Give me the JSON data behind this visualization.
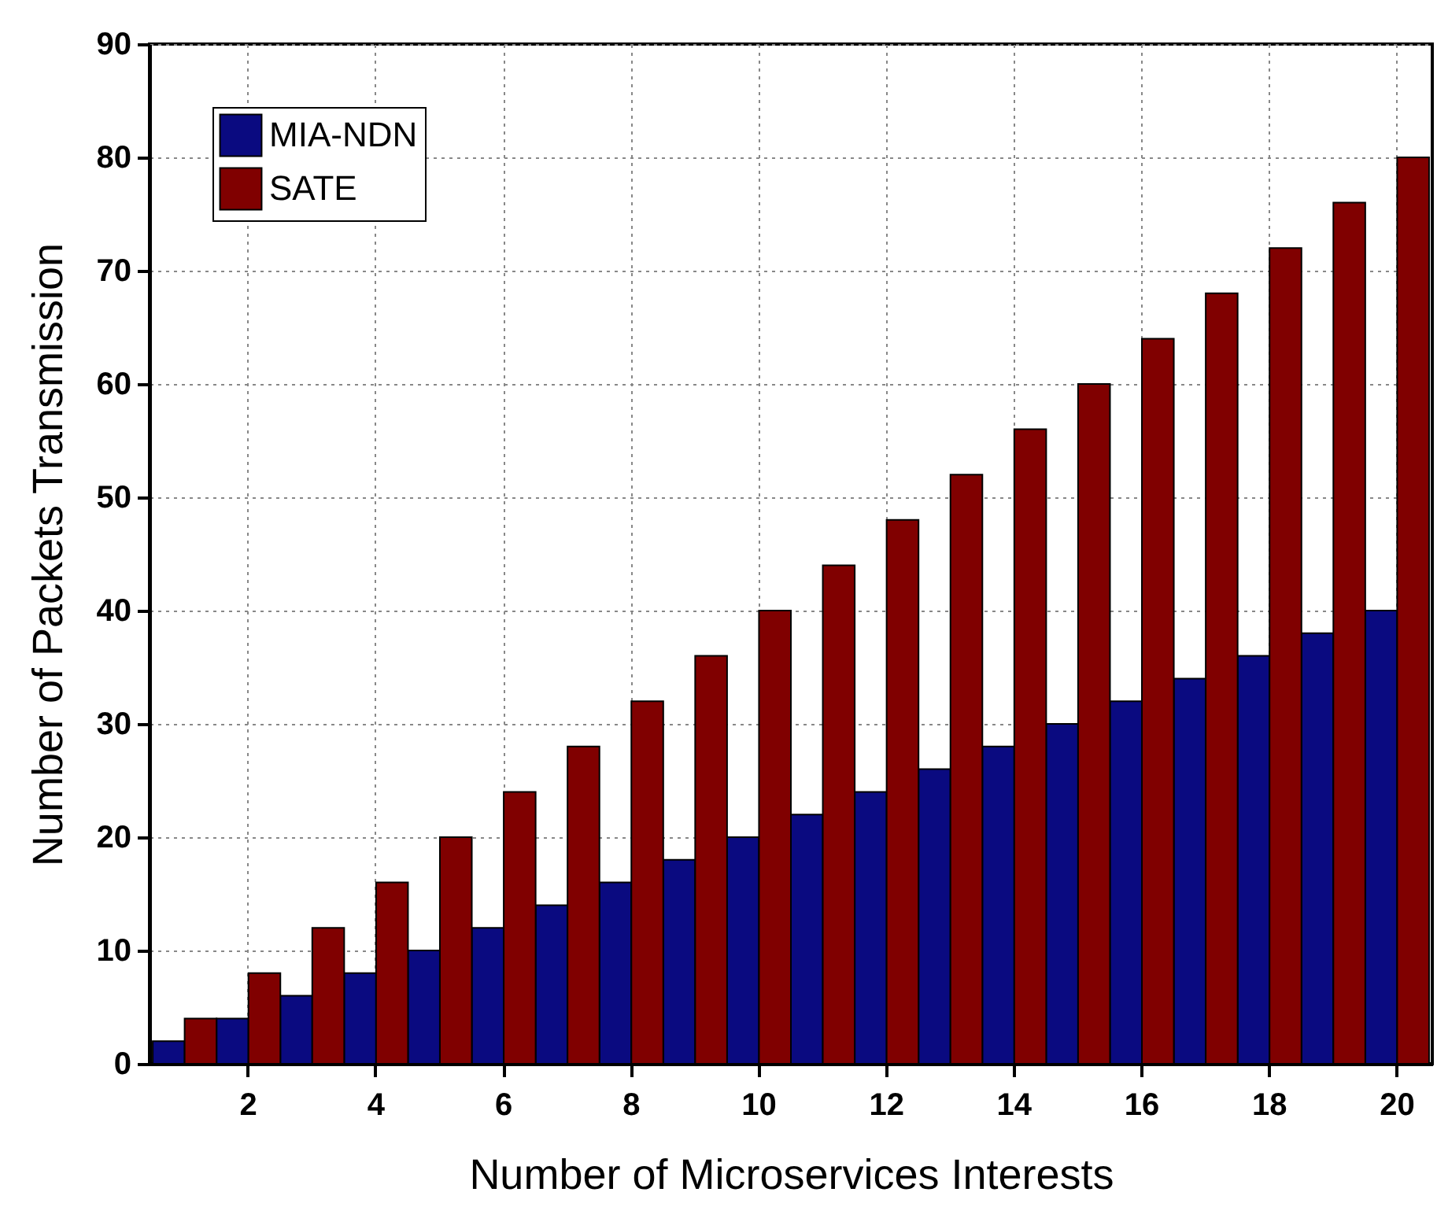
{
  "chart_data": {
    "type": "bar",
    "xlabel": "Number of Microservices Interests",
    "ylabel": "Number of Packets Transmission",
    "categories": [
      null,
      "2",
      null,
      "4",
      null,
      "6",
      null,
      "8",
      null,
      "10",
      null,
      "12",
      null,
      "14",
      null,
      "16",
      null,
      "18",
      null,
      "20"
    ],
    "series": [
      {
        "name": "MIA-NDN",
        "color": "#0a0a80",
        "values": [
          2,
          4,
          6,
          8,
          10,
          12,
          14,
          16,
          18,
          20,
          22,
          24,
          26,
          28,
          30,
          32,
          34,
          36,
          38,
          40
        ]
      },
      {
        "name": "SATE",
        "color": "#800000",
        "values": [
          4,
          8,
          12,
          16,
          20,
          24,
          28,
          32,
          36,
          40,
          44,
          48,
          52,
          56,
          60,
          64,
          68,
          72,
          76,
          80
        ]
      }
    ],
    "ylim": [
      0,
      90
    ],
    "yticks": [
      0,
      10,
      20,
      30,
      40,
      50,
      60,
      70,
      80,
      90
    ],
    "grid": true,
    "legend": "top left"
  }
}
